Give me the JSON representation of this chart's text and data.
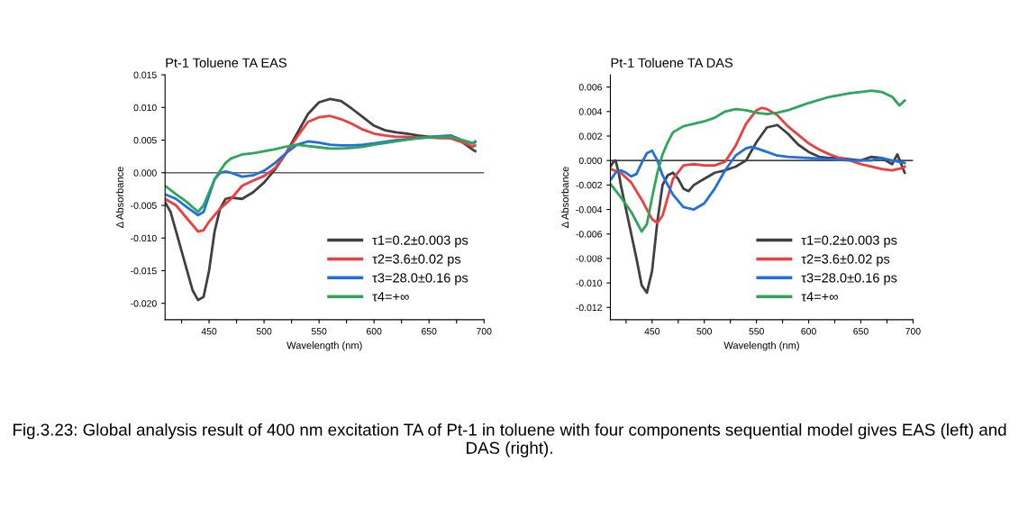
{
  "chart_data": [
    {
      "type": "line",
      "title": "Pt-1 Toluene TA EAS",
      "xlabel": "Wavelength (nm)",
      "ylabel": "Δ Absorbance",
      "xlim": [
        410,
        700
      ],
      "xticks": [
        {
          "value": 425,
          "label": null
        },
        450,
        {
          "value": 475,
          "label": null
        },
        500,
        {
          "value": 525,
          "label": null
        },
        550,
        {
          "value": 575,
          "label": null
        },
        600,
        {
          "value": 625,
          "label": null
        },
        650,
        {
          "value": 675,
          "label": null
        },
        700
      ],
      "ylim": [
        -0.0225,
        0.015
      ],
      "yticks": [
        {
          "value": -0.02,
          "label": "-0.020"
        },
        {
          "value": -0.015,
          "label": "-0.015"
        },
        {
          "value": -0.01,
          "label": "-0.010"
        },
        {
          "value": -0.005,
          "label": "-0.005"
        },
        {
          "value": 0,
          "label": "0.000"
        },
        {
          "value": 0.005,
          "label": "0.005"
        },
        {
          "value": 0.01,
          "label": "0.010"
        },
        {
          "value": 0.015,
          "label": "0.015"
        }
      ],
      "ref_lines": [
        {
          "axis": "y",
          "value": 0,
          "color": "#606060"
        }
      ],
      "grid": false,
      "legend": "bottom right",
      "marker": "none",
      "line_style": "solid",
      "annotations": [
        "Fig.3.23: Global analysis result of 400 nm excitation TA of Pt-1 in toluene with four components sequential model gives EAS (left) and DAS (right)."
      ],
      "series": [
        {
          "name": "τ1=0.2±0.003 ps",
          "color": "#404040",
          "x": [
            410,
            415,
            420,
            425,
            430,
            435,
            440,
            445,
            450,
            455,
            460,
            465,
            470,
            480,
            490,
            500,
            510,
            520,
            530,
            540,
            550,
            560,
            570,
            580,
            590,
            600,
            610,
            620,
            630,
            640,
            650,
            660,
            670,
            680,
            690,
            692
          ],
          "values": [
            -0.0045,
            -0.006,
            -0.009,
            -0.012,
            -0.015,
            -0.018,
            -0.0195,
            -0.019,
            -0.015,
            -0.009,
            -0.0055,
            -0.004,
            -0.0038,
            -0.004,
            -0.003,
            -0.0015,
            0.0005,
            0.003,
            0.006,
            0.009,
            0.0108,
            0.0113,
            0.011,
            0.0098,
            0.0085,
            0.0072,
            0.0065,
            0.0062,
            0.006,
            0.0057,
            0.0055,
            0.0055,
            0.0053,
            0.0047,
            0.0035,
            0.0033
          ]
        },
        {
          "name": "τ2=3.6±0.02 ps",
          "color": "#f03c3c",
          "x": [
            410,
            420,
            430,
            440,
            445,
            450,
            460,
            470,
            480,
            490,
            500,
            510,
            520,
            530,
            540,
            550,
            560,
            570,
            580,
            590,
            600,
            610,
            620,
            630,
            640,
            650,
            660,
            670,
            680,
            690,
            692
          ],
          "values": [
            -0.004,
            -0.005,
            -0.007,
            -0.009,
            -0.0088,
            -0.0075,
            -0.0055,
            -0.004,
            -0.002,
            -0.0012,
            -0.0005,
            0.0007,
            0.003,
            0.0055,
            0.0078,
            0.0085,
            0.0087,
            0.0082,
            0.0075,
            0.0066,
            0.006,
            0.0057,
            0.0055,
            0.0055,
            0.0054,
            0.0054,
            0.0053,
            0.0053,
            0.0047,
            0.004,
            0.0042
          ]
        },
        {
          "name": "τ3=28.0±0.16 ps",
          "color": "#1f6fe0",
          "x": [
            410,
            420,
            430,
            440,
            445,
            450,
            455,
            460,
            465,
            470,
            480,
            490,
            500,
            510,
            520,
            530,
            540,
            550,
            560,
            570,
            580,
            590,
            600,
            620,
            640,
            660,
            670,
            680,
            690,
            692
          ],
          "values": [
            -0.0033,
            -0.004,
            -0.0053,
            -0.0065,
            -0.006,
            -0.0035,
            -0.001,
            0.0,
            0.0002,
            0.0,
            -0.0006,
            -0.0004,
            0.0003,
            0.0015,
            0.003,
            0.0043,
            0.0048,
            0.0046,
            0.0043,
            0.0042,
            0.0042,
            0.0043,
            0.0045,
            0.005,
            0.0053,
            0.0056,
            0.0057,
            0.005,
            0.0045,
            0.0047
          ]
        },
        {
          "name": "τ4=+∞",
          "color": "#2ca65a",
          "x": [
            410,
            420,
            430,
            440,
            445,
            450,
            455,
            460,
            465,
            470,
            480,
            490,
            500,
            510,
            520,
            530,
            540,
            550,
            560,
            570,
            580,
            590,
            600,
            620,
            640,
            660,
            670,
            680,
            690,
            692
          ],
          "values": [
            -0.002,
            -0.0033,
            -0.0045,
            -0.006,
            -0.005,
            -0.003,
            -0.001,
            0.0003,
            0.0015,
            0.0022,
            0.0028,
            0.003,
            0.0033,
            0.0036,
            0.004,
            0.0043,
            0.0041,
            0.0039,
            0.0037,
            0.0037,
            0.0038,
            0.004,
            0.0043,
            0.0048,
            0.0053,
            0.0055,
            0.0055,
            0.005,
            0.0045,
            0.0048
          ]
        }
      ]
    },
    {
      "type": "line",
      "title": "Pt-1 Toluene TA DAS",
      "xlabel": "Wavelength (nm)",
      "ylabel": "Δ Absorbance",
      "xlim": [
        410,
        700
      ],
      "xticks": [
        {
          "value": 425,
          "label": null
        },
        450,
        {
          "value": 475,
          "label": null
        },
        500,
        {
          "value": 525,
          "label": null
        },
        550,
        {
          "value": 575,
          "label": null
        },
        600,
        {
          "value": 625,
          "label": null
        },
        650,
        {
          "value": 675,
          "label": null
        },
        700
      ],
      "ylim": [
        -0.013,
        0.007
      ],
      "yticks": [
        {
          "value": -0.012,
          "label": "-0.012"
        },
        {
          "value": -0.01,
          "label": "-0.010"
        },
        {
          "value": -0.008,
          "label": "-0.008"
        },
        {
          "value": -0.006,
          "label": "-0.006"
        },
        {
          "value": -0.004,
          "label": "-0.004"
        },
        {
          "value": -0.002,
          "label": "-0.002"
        },
        {
          "value": 0,
          "label": "0.000"
        },
        {
          "value": 0.002,
          "label": "0.002"
        },
        {
          "value": 0.004,
          "label": "0.004"
        },
        {
          "value": 0.006,
          "label": "0.006"
        }
      ],
      "ref_lines": [
        {
          "axis": "y",
          "value": 0,
          "color": "#000000"
        }
      ],
      "grid": false,
      "legend": "bottom right",
      "marker": "none",
      "line_style": "solid",
      "series": [
        {
          "name": "τ1=0.2±0.003 ps",
          "color": "#404040",
          "x": [
            410,
            413,
            415,
            418,
            420,
            425,
            430,
            435,
            440,
            445,
            450,
            455,
            460,
            465,
            470,
            475,
            480,
            485,
            490,
            500,
            510,
            520,
            530,
            540,
            550,
            560,
            570,
            580,
            590,
            600,
            610,
            620,
            630,
            640,
            650,
            660,
            670,
            680,
            685,
            692
          ],
          "values": [
            -0.0005,
            -0.0001,
            0.0,
            -0.001,
            -0.002,
            -0.004,
            -0.006,
            -0.008,
            -0.0102,
            -0.0108,
            -0.009,
            -0.005,
            -0.002,
            -0.0012,
            -0.001,
            -0.0015,
            -0.0023,
            -0.0025,
            -0.002,
            -0.0015,
            -0.001,
            -0.0008,
            -0.0005,
            0.0,
            0.0015,
            0.0027,
            0.0029,
            0.0022,
            0.0013,
            0.0007,
            0.0003,
            0.0002,
            0.0002,
            0.0001,
            0.0,
            0.0003,
            0.0002,
            -0.0003,
            0.0005,
            -0.001
          ]
        },
        {
          "name": "τ2=3.6±0.02 ps",
          "color": "#f03c3c",
          "x": [
            410,
            420,
            430,
            440,
            450,
            455,
            460,
            465,
            470,
            480,
            490,
            500,
            510,
            520,
            530,
            540,
            550,
            555,
            560,
            570,
            580,
            590,
            600,
            610,
            620,
            630,
            640,
            650,
            660,
            670,
            680,
            690,
            692
          ],
          "values": [
            -0.0007,
            -0.001,
            -0.0018,
            -0.0032,
            -0.0048,
            -0.0051,
            -0.0045,
            -0.003,
            -0.0015,
            -0.0004,
            -0.0003,
            -0.0004,
            -0.0004,
            -0.0001,
            0.0012,
            0.003,
            0.0041,
            0.0043,
            0.0042,
            0.0037,
            0.0028,
            0.0021,
            0.0014,
            0.0009,
            0.0005,
            0.0002,
            0.0,
            -0.0003,
            -0.0005,
            -0.0007,
            -0.0008,
            -0.0006,
            -0.0005
          ]
        },
        {
          "name": "τ3=28.0±0.16 ps",
          "color": "#1f6fe0",
          "x": [
            410,
            415,
            420,
            425,
            430,
            435,
            440,
            445,
            450,
            455,
            460,
            470,
            480,
            490,
            500,
            510,
            520,
            530,
            540,
            545,
            550,
            560,
            570,
            580,
            600,
            620,
            640,
            660,
            670,
            680,
            692
          ],
          "values": [
            -0.0016,
            -0.001,
            -0.0008,
            -0.001,
            -0.0013,
            -0.0011,
            -0.0002,
            0.0006,
            0.0008,
            0.0,
            -0.0012,
            -0.0028,
            -0.0038,
            -0.004,
            -0.0035,
            -0.0023,
            -0.0008,
            0.0004,
            0.001,
            0.0011,
            0.001,
            0.0007,
            0.0004,
            0.0003,
            0.0002,
            0.0001,
            0.0,
            0.0,
            0.0002,
            0.0,
            -0.0002
          ]
        },
        {
          "name": "τ4=+∞",
          "color": "#2ca65a",
          "x": [
            410,
            420,
            430,
            440,
            445,
            450,
            455,
            460,
            465,
            470,
            480,
            490,
            500,
            510,
            520,
            530,
            540,
            550,
            560,
            570,
            580,
            590,
            600,
            620,
            640,
            650,
            660,
            670,
            680,
            687,
            692
          ],
          "values": [
            -0.0019,
            -0.003,
            -0.0042,
            -0.0058,
            -0.0052,
            -0.003,
            -0.001,
            0.0005,
            0.0015,
            0.0023,
            0.0028,
            0.003,
            0.0032,
            0.0035,
            0.004,
            0.0042,
            0.0041,
            0.0039,
            0.0038,
            0.0039,
            0.0041,
            0.0044,
            0.0047,
            0.0052,
            0.0055,
            0.0056,
            0.0057,
            0.0056,
            0.0052,
            0.0045,
            0.0049
          ]
        }
      ]
    }
  ]
}
